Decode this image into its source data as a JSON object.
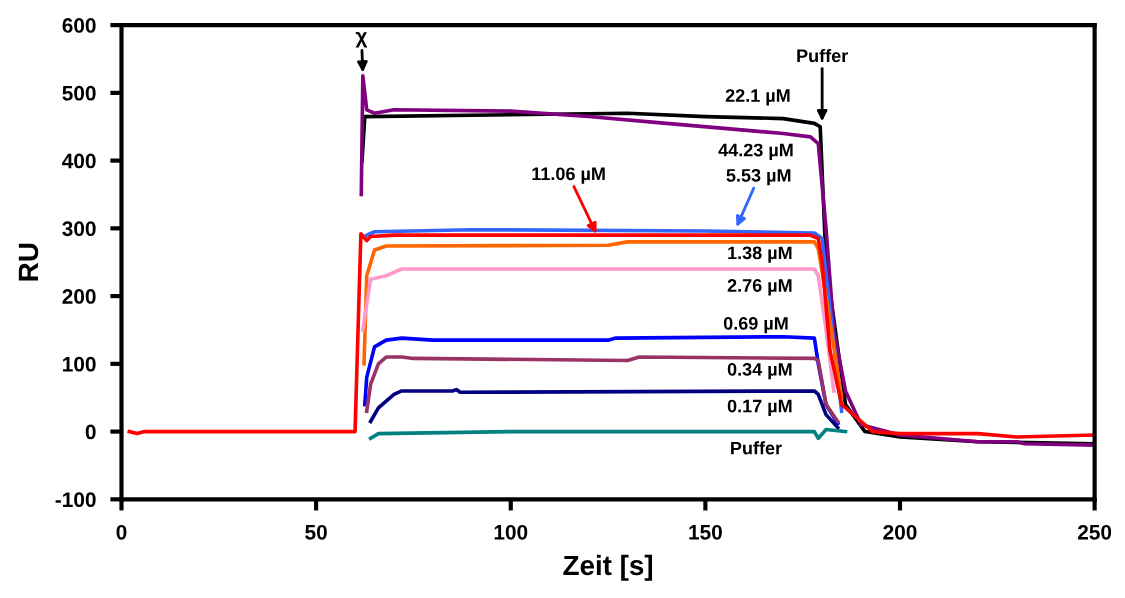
{
  "chart_data": {
    "type": "line",
    "xlabel": "Zeit [s]",
    "ylabel": "RU",
    "xlim": [
      0,
      250
    ],
    "ylim": [
      -100,
      600
    ],
    "xticks": [
      0,
      50,
      100,
      150,
      200,
      250
    ],
    "yticks": [
      -100,
      0,
      100,
      200,
      300,
      400,
      500,
      600
    ],
    "grid": false,
    "legend": false,
    "marker": "none",
    "line_style": "solid",
    "series": [
      {
        "color": "#000000",
        "x": [
          61.8,
          62.5,
          130,
          150,
          170,
          178,
          179.5,
          181,
          186,
          191,
          200,
          220,
          250
        ],
        "values": [
          400,
          465,
          470,
          465,
          462,
          455,
          450,
          250,
          40,
          0,
          -8,
          -15,
          -18
        ]
      },
      {
        "color": "#800080",
        "x": [
          61.6,
          62,
          63,
          65,
          70,
          100,
          120,
          140,
          160,
          170,
          177,
          179,
          181,
          183,
          186,
          190,
          200,
          220,
          230,
          232,
          250
        ],
        "values": [
          350,
          525,
          475,
          470,
          475,
          473,
          465,
          455,
          445,
          440,
          435,
          425,
          300,
          150,
          60,
          10,
          -5,
          -15,
          -15,
          -18,
          -20
        ]
      },
      {
        "color": "#3366ff",
        "x": [
          63,
          65,
          90,
          150,
          178,
          180,
          185
        ],
        "values": [
          290,
          295,
          298,
          296,
          293,
          285,
          30
        ]
      },
      {
        "color": "#ff6600",
        "x": [
          62.3,
          63,
          65,
          68,
          125,
          130,
          178,
          179,
          181,
          185
        ],
        "values": [
          100,
          230,
          268,
          274,
          275,
          280,
          280,
          270,
          200,
          50
        ]
      },
      {
        "color": "#ff99cc",
        "x": [
          62,
          64,
          68,
          72,
          178,
          179,
          181,
          183
        ],
        "values": [
          150,
          225,
          230,
          240,
          240,
          230,
          150,
          60
        ]
      },
      {
        "color": "#0000ff",
        "x": [
          62.5,
          63,
          65,
          68,
          72,
          80,
          125,
          127,
          170,
          178,
          179,
          181,
          184
        ],
        "values": [
          40,
          80,
          125,
          135,
          138,
          135,
          135,
          138,
          140,
          138,
          100,
          40,
          12
        ]
      },
      {
        "color": "#993366",
        "x": [
          63,
          64,
          66,
          68,
          72,
          75,
          130,
          133,
          178,
          179,
          181,
          184
        ],
        "values": [
          30,
          70,
          100,
          110,
          110,
          108,
          105,
          110,
          108,
          105,
          40,
          15
        ]
      },
      {
        "color": "#000080",
        "x": [
          64,
          66,
          70,
          72,
          85,
          86,
          87,
          178,
          179,
          181,
          184
        ],
        "values": [
          15,
          35,
          55,
          60,
          60,
          62,
          58,
          60,
          55,
          25,
          6
        ]
      },
      {
        "color": "#008080",
        "x": [
          64,
          66,
          100,
          178,
          179,
          181,
          186
        ],
        "values": [
          -10,
          -3,
          0,
          0,
          -10,
          3,
          0
        ]
      },
      {
        "color": "#ff0000",
        "x": [
          2,
          4,
          6,
          60,
          61.5,
          63,
          64,
          70,
          150,
          177,
          179,
          180,
          182,
          185,
          193,
          200,
          220,
          230,
          250
        ],
        "values": [
          0,
          -3,
          0,
          0,
          292,
          282,
          288,
          290,
          290,
          290,
          285,
          250,
          120,
          40,
          0,
          -3,
          -3,
          -8,
          -5
        ]
      }
    ],
    "annotations": [
      {
        "text": "χ",
        "x": 62,
        "y": 530
      },
      {
        "text": "Puffer",
        "x": 180,
        "y": 458
      },
      {
        "text": "22.1 µM",
        "x": 163.5,
        "y": 463
      },
      {
        "text": "44.23 µM",
        "x": 163,
        "y": 442
      },
      {
        "text": "11.06 µM",
        "x": 122,
        "y": 292
      },
      {
        "text": "5.53 µM",
        "x": 158,
        "y": 302
      },
      {
        "text": "1.38 µM",
        "x": 164,
        "y": 280
      },
      {
        "text": "2.76 µM",
        "x": 164,
        "y": 240
      },
      {
        "text": "0.69 µM",
        "x": 163,
        "y": 139
      },
      {
        "text": "0.34 µM",
        "x": 164,
        "y": 108
      },
      {
        "text": "0.17 µM",
        "x": 164,
        "y": 60
      },
      {
        "text": "Puffer",
        "x": 163,
        "y": 0
      }
    ]
  }
}
